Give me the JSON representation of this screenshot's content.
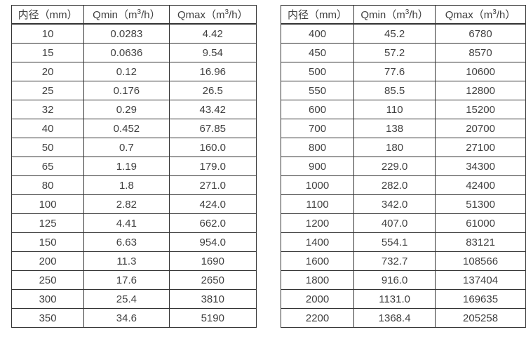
{
  "tables": [
    {
      "name": "flow-spec-table-small-diameters",
      "headers": [
        "内径（mm）",
        "Qmin（m³/h）",
        "Qmax（m³/h）"
      ],
      "rows": [
        [
          "10",
          "0.0283",
          "4.42"
        ],
        [
          "15",
          "0.0636",
          "9.54"
        ],
        [
          "20",
          "0.12",
          "16.96"
        ],
        [
          "25",
          "0.176",
          "26.5"
        ],
        [
          "32",
          "0.29",
          "43.42"
        ],
        [
          "40",
          "0.452",
          "67.85"
        ],
        [
          "50",
          "0.7",
          "160.0"
        ],
        [
          "65",
          "1.19",
          "179.0"
        ],
        [
          "80",
          "1.8",
          "271.0"
        ],
        [
          "100",
          "2.82",
          "424.0"
        ],
        [
          "125",
          "4.41",
          "662.0"
        ],
        [
          "150",
          "6.63",
          "954.0"
        ],
        [
          "200",
          "11.3",
          "1690"
        ],
        [
          "250",
          "17.6",
          "2650"
        ],
        [
          "300",
          "25.4",
          "3810"
        ],
        [
          "350",
          "34.6",
          "5190"
        ]
      ]
    },
    {
      "name": "flow-spec-table-large-diameters",
      "headers": [
        "内径（mm）",
        "Qmin（m³/h）",
        "Qmax（m³/h）"
      ],
      "rows": [
        [
          "400",
          "45.2",
          "6780"
        ],
        [
          "450",
          "57.2",
          "8570"
        ],
        [
          "500",
          "77.6",
          "10600"
        ],
        [
          "550",
          "85.5",
          "12800"
        ],
        [
          "600",
          "110",
          "15200"
        ],
        [
          "700",
          "138",
          "20700"
        ],
        [
          "800",
          "180",
          "27100"
        ],
        [
          "900",
          "229.0",
          "34300"
        ],
        [
          "1000",
          "282.0",
          "42400"
        ],
        [
          "1100",
          "342.0",
          "51300"
        ],
        [
          "1200",
          "407.0",
          "61000"
        ],
        [
          "1400",
          "554.1",
          "83121"
        ],
        [
          "1600",
          "732.7",
          "108566"
        ],
        [
          "1800",
          "916.0",
          "137404"
        ],
        [
          "2000",
          "1131.0",
          "169635"
        ],
        [
          "2200",
          "1368.4",
          "205258"
        ]
      ]
    }
  ],
  "colors": {
    "text": "#404040",
    "border": "#333333",
    "background": "#ffffff"
  }
}
